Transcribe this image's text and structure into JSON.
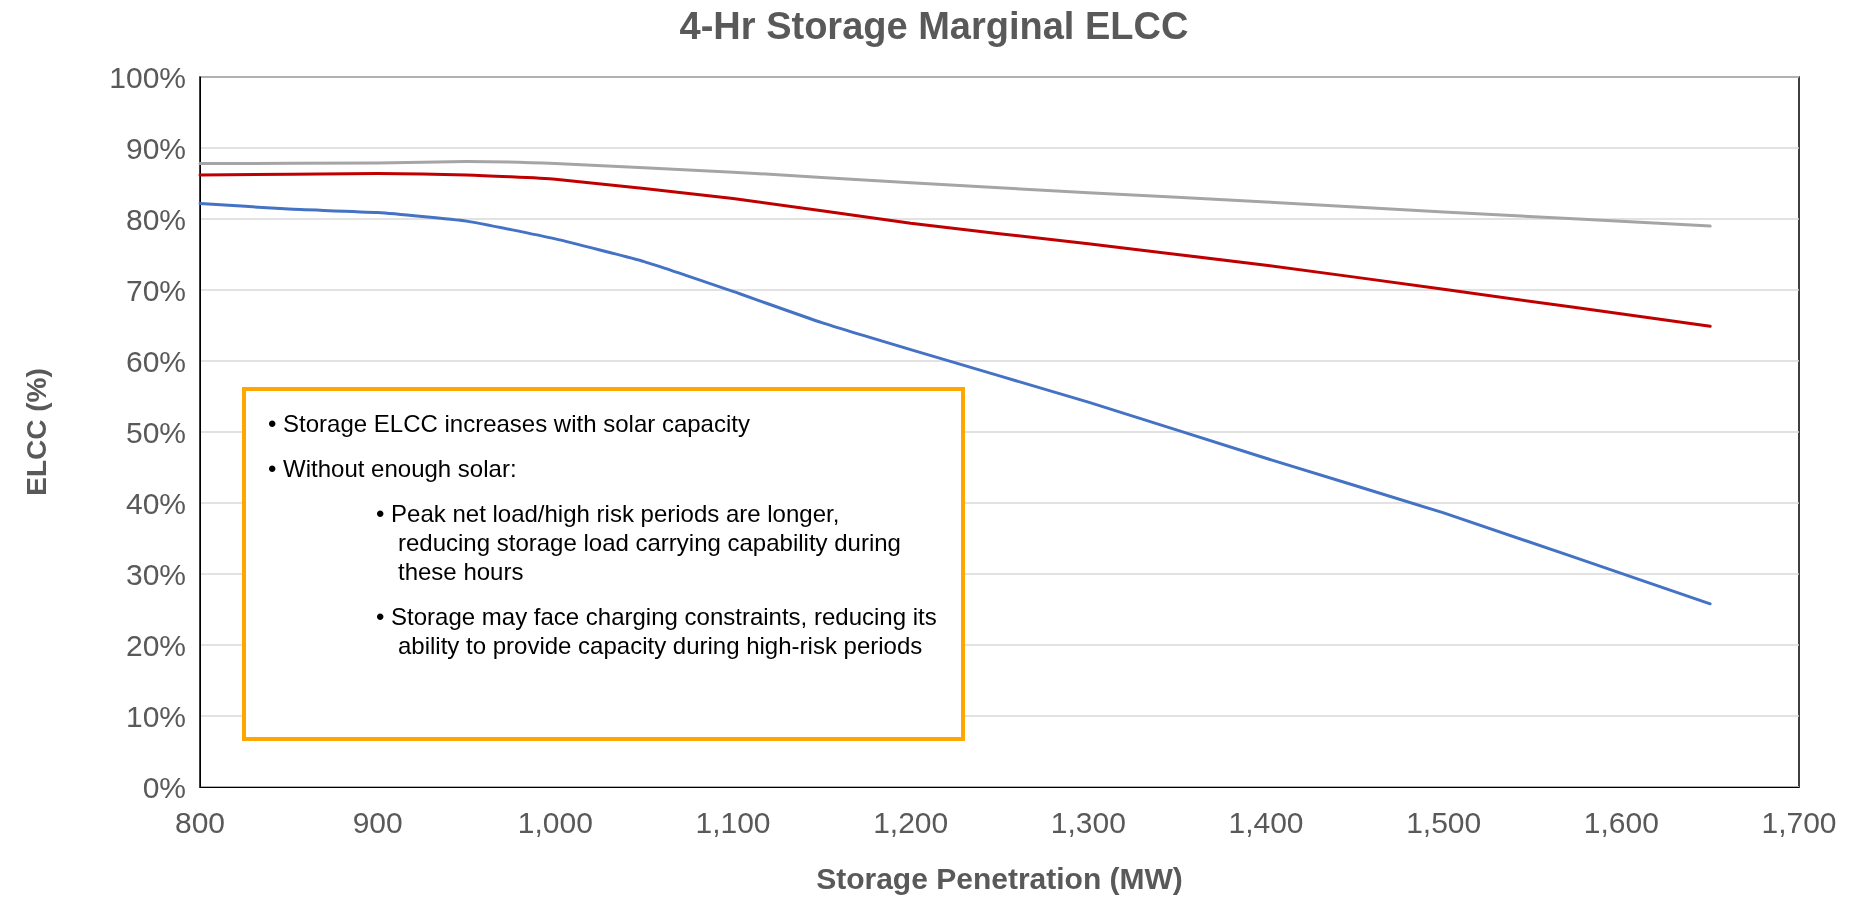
{
  "chart_data": {
    "type": "line",
    "title": "4-Hr Storage Marginal ELCC",
    "xlabel": "Storage Penetration (MW)",
    "ylabel": "ELCC (%)",
    "xlim": [
      800,
      1700
    ],
    "xticks": [
      {
        "value": 800,
        "label": "800"
      },
      {
        "value": 900,
        "label": "900"
      },
      {
        "value": 1000,
        "label": "1,000"
      },
      {
        "value": 1100,
        "label": "1,100"
      },
      {
        "value": 1200,
        "label": "1,200"
      },
      {
        "value": 1300,
        "label": "1,300"
      },
      {
        "value": 1400,
        "label": "1,400"
      },
      {
        "value": 1500,
        "label": "1,500"
      },
      {
        "value": 1600,
        "label": "1,600"
      },
      {
        "value": 1700,
        "label": "1,700"
      }
    ],
    "ylim": [
      0,
      100
    ],
    "yticks": [
      {
        "value": 0,
        "label": "0%"
      },
      {
        "value": 10,
        "label": "10%"
      },
      {
        "value": 20,
        "label": "20%"
      },
      {
        "value": 30,
        "label": "30%"
      },
      {
        "value": 40,
        "label": "40%"
      },
      {
        "value": 50,
        "label": "50%"
      },
      {
        "value": 60,
        "label": "60%"
      },
      {
        "value": 70,
        "label": "70%"
      },
      {
        "value": 80,
        "label": "80%"
      },
      {
        "value": 90,
        "label": "90%"
      },
      {
        "value": 100,
        "label": "100%"
      }
    ],
    "grid": "y",
    "marker": "none",
    "line_style": "solid",
    "x": [
      800,
      900,
      950,
      1000,
      1100,
      1200,
      1300,
      1400,
      1500,
      1650
    ],
    "series": [
      {
        "color": "#a5a5a5",
        "values": [
          87.8,
          87.9,
          88.1,
          87.8,
          86.6,
          85.1,
          83.7,
          82.4,
          81.0,
          79.0
        ]
      },
      {
        "color": "#c00000",
        "values": [
          86.2,
          86.4,
          86.2,
          85.6,
          82.9,
          79.4,
          76.5,
          73.5,
          70.1,
          64.9
        ]
      },
      {
        "color": "#4472c4",
        "x": [
          800,
          850,
          900,
          950,
          1000,
          1050,
          1100,
          1150,
          1200,
          1300,
          1400,
          1500,
          1650
        ],
        "values": [
          82.2,
          81.4,
          80.9,
          79.7,
          77.2,
          74.0,
          69.8,
          65.4,
          61.6,
          54.2,
          46.3,
          38.6,
          25.8
        ]
      }
    ],
    "annotations": [
      "• Storage ELCC increases with solar capacity",
      "• Without enough solar:",
      "• Peak net load/high risk periods are longer, reducing storage load carrying capability during these hours",
      "• Storage may face charging constraints, reducing its ability to provide capacity during high-risk periods"
    ]
  }
}
